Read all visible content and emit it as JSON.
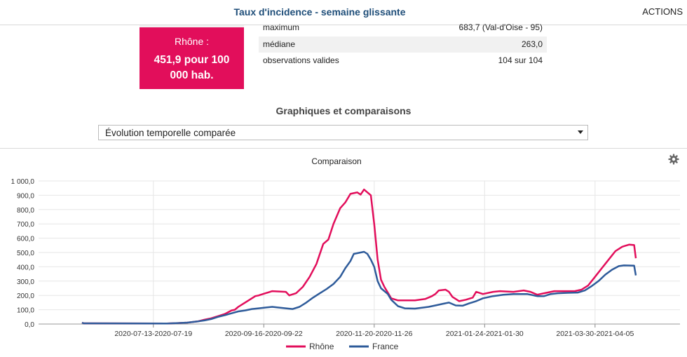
{
  "header": {
    "title": "Taux d'incidence - semaine glissante",
    "actions_label": "ACTIONS"
  },
  "value_card": {
    "label": "Rhône :",
    "value": "451,9 pour 100 000 hab."
  },
  "stats": [
    {
      "label": "maximum",
      "value": "683,7 (Val-d'Oise - 95)"
    },
    {
      "label": "médiane",
      "value": "263,0"
    },
    {
      "label": "observations valides",
      "value": "104 sur 104"
    }
  ],
  "section": {
    "title": "Graphiques et comparaisons"
  },
  "select": {
    "value": "Évolution temporelle comparée"
  },
  "colors": {
    "rhone": "#e20e5b",
    "france": "#2e5b9a",
    "accent_title": "#1f4e79"
  },
  "icons": {
    "settings": "gear-icon",
    "dropdown": "caret-down-icon"
  },
  "chart_data": {
    "type": "line",
    "title": "Comparaison",
    "xlabel": "",
    "ylabel": "",
    "ylim": [
      0,
      1000
    ],
    "yticks": [
      0,
      100,
      200,
      300,
      400,
      500,
      600,
      700,
      800,
      900,
      1000
    ],
    "ytick_labels": [
      "0,0",
      "100,0",
      "200,0",
      "300,0",
      "400,0",
      "500,0",
      "600,0",
      "700,0",
      "800,0",
      "900,0",
      "1 000,0"
    ],
    "x_tick_labels": [
      "2020-07-13-2020-07-19",
      "2020-09-16-2020-09-22",
      "2020-11-20-2020-11-26",
      "2021-01-24-2021-01-30",
      "2021-03-30-2021-04-05"
    ],
    "x_tick_index": [
      42,
      107,
      172,
      237,
      302
    ],
    "legend_position": "bottom",
    "series": [
      {
        "name": "Rhône",
        "color": "#e20e5b",
        "anchors": [
          [
            0,
            10
          ],
          [
            1,
            5
          ],
          [
            50,
            4
          ],
          [
            55,
            6
          ],
          [
            62,
            10
          ],
          [
            68,
            18
          ],
          [
            72,
            30
          ],
          [
            76,
            40
          ],
          [
            80,
            55
          ],
          [
            84,
            70
          ],
          [
            88,
            95
          ],
          [
            90,
            100
          ],
          [
            92,
            120
          ],
          [
            96,
            150
          ],
          [
            100,
            180
          ],
          [
            102,
            195
          ],
          [
            104,
            200
          ],
          [
            108,
            215
          ],
          [
            112,
            230
          ],
          [
            120,
            225
          ],
          [
            122,
            200
          ],
          [
            126,
            215
          ],
          [
            130,
            260
          ],
          [
            134,
            330
          ],
          [
            138,
            420
          ],
          [
            142,
            560
          ],
          [
            145,
            590
          ],
          [
            148,
            700
          ],
          [
            152,
            810
          ],
          [
            155,
            850
          ],
          [
            158,
            910
          ],
          [
            162,
            920
          ],
          [
            164,
            905
          ],
          [
            166,
            940
          ],
          [
            168,
            920
          ],
          [
            170,
            900
          ],
          [
            172,
            700
          ],
          [
            174,
            450
          ],
          [
            176,
            310
          ],
          [
            178,
            260
          ],
          [
            180,
            220
          ],
          [
            182,
            180
          ],
          [
            186,
            165
          ],
          [
            196,
            165
          ],
          [
            202,
            175
          ],
          [
            206,
            195
          ],
          [
            208,
            210
          ],
          [
            210,
            235
          ],
          [
            214,
            240
          ],
          [
            216,
            225
          ],
          [
            218,
            190
          ],
          [
            222,
            160
          ],
          [
            226,
            170
          ],
          [
            230,
            185
          ],
          [
            232,
            225
          ],
          [
            236,
            210
          ],
          [
            242,
            225
          ],
          [
            246,
            230
          ],
          [
            254,
            225
          ],
          [
            260,
            235
          ],
          [
            264,
            225
          ],
          [
            268,
            205
          ],
          [
            272,
            215
          ],
          [
            278,
            230
          ],
          [
            284,
            230
          ],
          [
            290,
            230
          ],
          [
            294,
            240
          ],
          [
            298,
            270
          ],
          [
            302,
            330
          ],
          [
            306,
            390
          ],
          [
            310,
            450
          ],
          [
            314,
            510
          ],
          [
            318,
            540
          ],
          [
            322,
            555
          ],
          [
            325,
            552
          ],
          [
            326,
            460
          ]
        ]
      },
      {
        "name": "France",
        "color": "#2e5b9a",
        "anchors": [
          [
            0,
            10
          ],
          [
            1,
            5
          ],
          [
            50,
            4
          ],
          [
            55,
            6
          ],
          [
            62,
            10
          ],
          [
            68,
            18
          ],
          [
            72,
            25
          ],
          [
            76,
            35
          ],
          [
            80,
            50
          ],
          [
            84,
            62
          ],
          [
            88,
            75
          ],
          [
            92,
            88
          ],
          [
            96,
            95
          ],
          [
            100,
            105
          ],
          [
            104,
            110
          ],
          [
            108,
            115
          ],
          [
            112,
            120
          ],
          [
            120,
            110
          ],
          [
            124,
            105
          ],
          [
            128,
            120
          ],
          [
            132,
            150
          ],
          [
            136,
            185
          ],
          [
            140,
            215
          ],
          [
            144,
            245
          ],
          [
            148,
            280
          ],
          [
            152,
            330
          ],
          [
            155,
            390
          ],
          [
            158,
            440
          ],
          [
            160,
            490
          ],
          [
            164,
            500
          ],
          [
            166,
            505
          ],
          [
            168,
            490
          ],
          [
            170,
            450
          ],
          [
            172,
            400
          ],
          [
            174,
            300
          ],
          [
            176,
            250
          ],
          [
            180,
            210
          ],
          [
            182,
            170
          ],
          [
            186,
            125
          ],
          [
            190,
            110
          ],
          [
            196,
            108
          ],
          [
            204,
            120
          ],
          [
            208,
            130
          ],
          [
            212,
            140
          ],
          [
            216,
            150
          ],
          [
            220,
            130
          ],
          [
            224,
            128
          ],
          [
            228,
            145
          ],
          [
            232,
            160
          ],
          [
            236,
            180
          ],
          [
            242,
            195
          ],
          [
            248,
            205
          ],
          [
            254,
            210
          ],
          [
            258,
            210
          ],
          [
            262,
            210
          ],
          [
            268,
            195
          ],
          [
            272,
            195
          ],
          [
            276,
            210
          ],
          [
            280,
            215
          ],
          [
            286,
            218
          ],
          [
            292,
            220
          ],
          [
            296,
            235
          ],
          [
            300,
            265
          ],
          [
            304,
            300
          ],
          [
            308,
            345
          ],
          [
            312,
            380
          ],
          [
            316,
            405
          ],
          [
            319,
            410
          ],
          [
            325,
            408
          ],
          [
            326,
            340
          ]
        ]
      }
    ]
  },
  "chart_ui": {
    "x_count": 327
  }
}
